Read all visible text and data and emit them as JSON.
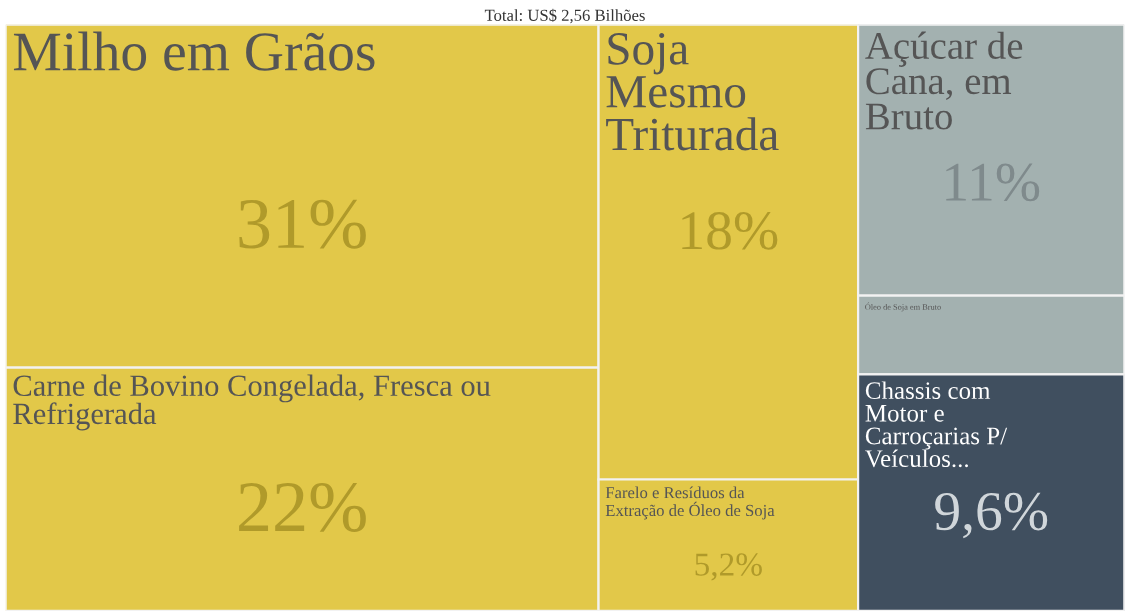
{
  "chart_data": {
    "type": "other",
    "title": "Total: US$ 2,56 Bilhões",
    "categories": [
      "Milho em Grãos",
      "Carne de Bovino Congelada, Fresca ou Refrigerada",
      "Soja Mesmo Triturada",
      "Farelo e Resíduos da Extração de Óleo de Soja",
      "Açúcar de Cana, em Bruto",
      "Óleo de Soja em Bruto",
      "Chassis com Motor e Carroçarias P/ Veículos..."
    ],
    "values": [
      31,
      22,
      18,
      5.2,
      11,
      null,
      9.6
    ],
    "value_labels": [
      "31%",
      "22%",
      "18%",
      "5,2%",
      "11%",
      null,
      "9,6%"
    ],
    "colors": [
      "#e2c849",
      "#e2c849",
      "#e2c849",
      "#e2c849",
      "#a3b1b0",
      "#a3b1b0",
      "#404f5f"
    ]
  }
}
